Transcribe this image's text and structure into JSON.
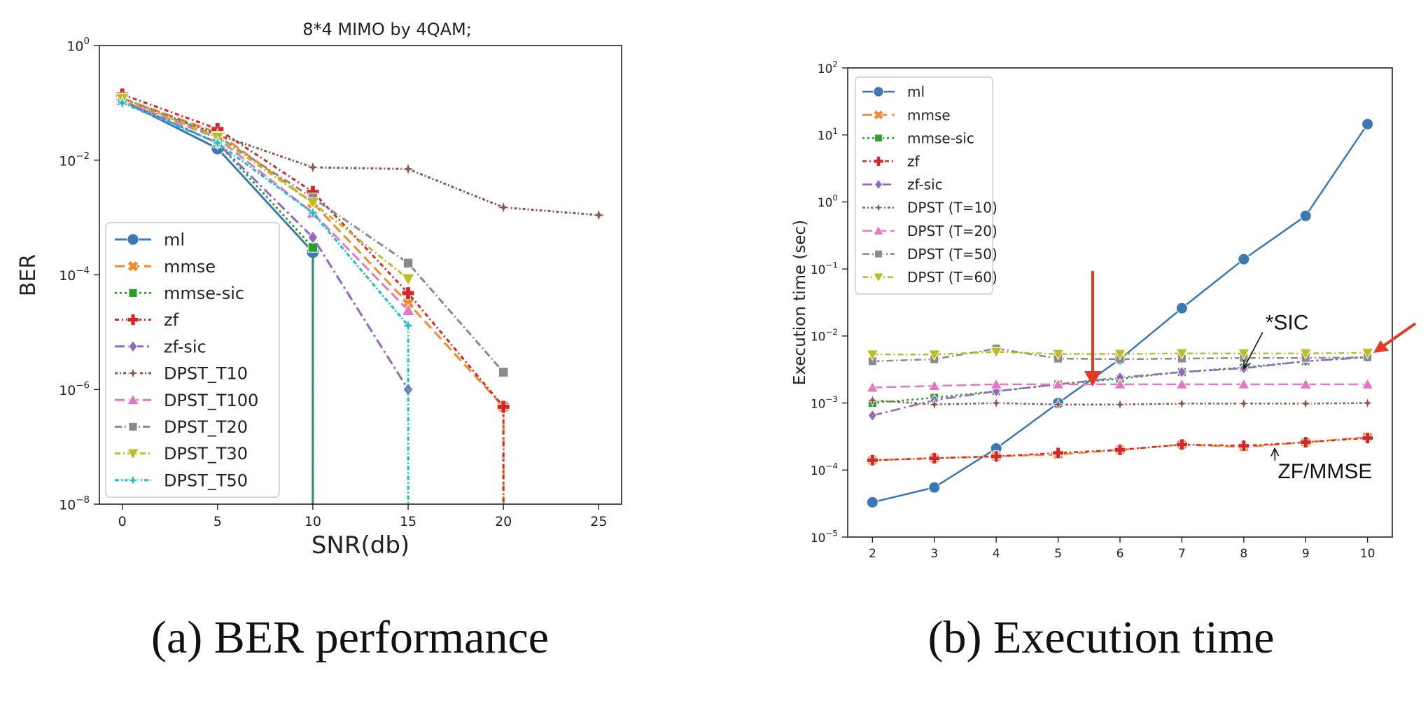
{
  "chart_data": [
    {
      "id": "a",
      "type": "line",
      "title": "8*4 MIMO by 4QAM;",
      "xlabel": "SNR(db)",
      "ylabel": "BER",
      "yscale": "log",
      "xlim": [
        -1.2,
        26.2
      ],
      "ylim": [
        1e-08,
        1
      ],
      "xticks": [
        0,
        5,
        10,
        15,
        20,
        25
      ],
      "xtick_labels": [
        "0",
        "5",
        "10",
        "15",
        "20",
        "25"
      ],
      "yticks": [
        1e-08,
        1e-06,
        0.0001,
        0.01,
        1
      ],
      "ytick_labels": [
        [
          "10",
          "−8"
        ],
        [
          "10",
          "−6"
        ],
        [
          "10",
          "−4"
        ],
        [
          "10",
          "−2"
        ],
        [
          "10",
          "0"
        ]
      ],
      "legend": "lower-left",
      "caption": "(a) BER performance",
      "series": [
        {
          "name": "ml",
          "color": "#3c78b4",
          "dash": "",
          "marker": "circle",
          "points": [
            [
              0,
              0.11
            ],
            [
              5,
              0.016
            ],
            [
              10,
              0.00025
            ],
            [
              10,
              1e-08
            ]
          ]
        },
        {
          "name": "mmse",
          "color": "#f5892a",
          "dash": "14 7",
          "marker": "x",
          "points": [
            [
              0,
              0.12
            ],
            [
              5,
              0.03
            ],
            [
              10,
              0.0018
            ],
            [
              15,
              3.2e-05
            ],
            [
              20,
              5e-07
            ],
            [
              20,
              1e-08
            ]
          ]
        },
        {
          "name": "mmse-sic",
          "color": "#2ca02c",
          "dash": "3 4",
          "marker": "square",
          "points": [
            [
              0,
              0.11
            ],
            [
              5,
              0.02
            ],
            [
              10,
              0.0003
            ],
            [
              10,
              1e-08
            ]
          ]
        },
        {
          "name": "zf",
          "color": "#d62728",
          "dash": "6 4 2 4",
          "marker": "plus",
          "points": [
            [
              0,
              0.14
            ],
            [
              5,
              0.035
            ],
            [
              10,
              0.0028
            ],
            [
              15,
              4.8e-05
            ],
            [
              20,
              5e-07
            ],
            [
              20,
              1e-08
            ]
          ]
        },
        {
          "name": "zf-sic",
          "color": "#9467bd",
          "dash": "14 5 3 5",
          "marker": "diamond",
          "points": [
            [
              0,
              0.11
            ],
            [
              5,
              0.02
            ],
            [
              10,
              0.00045
            ],
            [
              15,
              1e-06
            ]
          ]
        },
        {
          "name": "DPST_T10",
          "color": "#8c564b",
          "dash": "4 3 2 3",
          "marker": "star",
          "points": [
            [
              0,
              0.12
            ],
            [
              5,
              0.028
            ],
            [
              10,
              0.0075
            ],
            [
              15,
              0.007
            ],
            [
              20,
              0.0015
            ],
            [
              25,
              0.0011
            ]
          ]
        },
        {
          "name": "DPST_T100",
          "color": "#e377c2",
          "dash": "14 6",
          "marker": "triangle",
          "points": [
            [
              0,
              0.11
            ],
            [
              5,
              0.024
            ],
            [
              10,
              0.0012
            ],
            [
              15,
              2.4e-05
            ]
          ]
        },
        {
          "name": "DPST_T20",
          "color": "#8a8a8a",
          "dash": "10 4 2 4",
          "marker": "square",
          "points": [
            [
              0,
              0.12
            ],
            [
              5,
              0.026
            ],
            [
              10,
              0.0022
            ],
            [
              15,
              0.00016
            ],
            [
              20,
              2e-06
            ]
          ]
        },
        {
          "name": "DPST_T30",
          "color": "#bcbd22",
          "dash": "8 4 2 4",
          "marker": "triangle-down",
          "points": [
            [
              0,
              0.12
            ],
            [
              5,
              0.025
            ],
            [
              10,
              0.0018
            ],
            [
              15,
              8.5e-05
            ]
          ]
        },
        {
          "name": "DPST_T50",
          "color": "#17becf",
          "dash": "6 3 2 3",
          "marker": "star",
          "points": [
            [
              0,
              0.1
            ],
            [
              5,
              0.02
            ],
            [
              10,
              0.0012
            ],
            [
              15,
              1.3e-05
            ],
            [
              15,
              1e-08
            ]
          ]
        }
      ]
    },
    {
      "id": "b",
      "type": "line",
      "title": "",
      "xlabel": "",
      "ylabel": "Execution time (sec)",
      "yscale": "log",
      "xlim": [
        1.6,
        10.4
      ],
      "ylim": [
        1e-05,
        100
      ],
      "xticks": [
        2,
        3,
        4,
        5,
        6,
        7,
        8,
        9,
        10
      ],
      "xtick_labels": [
        "2",
        "3",
        "4",
        "5",
        "6",
        "7",
        "8",
        "9",
        "10"
      ],
      "yticks": [
        1e-05,
        0.0001,
        0.001,
        0.01,
        0.1,
        1,
        10,
        100
      ],
      "ytick_labels": [
        [
          "10",
          "−5"
        ],
        [
          "10",
          "−4"
        ],
        [
          "10",
          "−3"
        ],
        [
          "10",
          "−2"
        ],
        [
          "10",
          "−1"
        ],
        [
          "10",
          "0"
        ],
        [
          "10",
          "1"
        ],
        [
          "10",
          "2"
        ]
      ],
      "legend": "upper-left",
      "caption": "(b) Execution time",
      "annotations": [
        {
          "text": "*SIC",
          "x": 8.35,
          "y": 0.0125,
          "arrow_to": [
            8.0,
            0.0033
          ]
        },
        {
          "text": "ZF/MMSE",
          "x": 8.55,
          "y": 7.5e-05,
          "arrow_to": [
            8.5,
            0.00021
          ]
        }
      ],
      "series": [
        {
          "name": "ml",
          "color": "#3c78b4",
          "dash": "",
          "marker": "circle",
          "points": [
            [
              2,
              3.3e-05
            ],
            [
              3,
              5.5e-05
            ],
            [
              4,
              0.00021
            ],
            [
              5,
              0.001
            ],
            [
              6,
              0.0045
            ],
            [
              7,
              0.026
            ],
            [
              8,
              0.14
            ],
            [
              9,
              0.62
            ],
            [
              10,
              14.5
            ]
          ]
        },
        {
          "name": "mmse",
          "color": "#f5892a",
          "dash": "14 7",
          "marker": "x",
          "points": [
            [
              2,
              0.00014
            ],
            [
              3,
              0.00015
            ],
            [
              4,
              0.00016
            ],
            [
              5,
              0.00017
            ],
            [
              6,
              0.0002
            ],
            [
              7,
              0.00024
            ],
            [
              8,
              0.00022
            ],
            [
              9,
              0.00026
            ],
            [
              10,
              0.00031
            ]
          ]
        },
        {
          "name": "mmse-sic",
          "color": "#2ca02c",
          "dash": "3 4",
          "marker": "square",
          "points": [
            [
              2,
              0.001
            ],
            [
              3,
              0.0012
            ],
            [
              4,
              0.0015
            ],
            [
              5,
              0.0019
            ],
            [
              6,
              0.0023
            ],
            [
              7,
              0.0029
            ],
            [
              8,
              0.0034
            ],
            [
              9,
              0.0042
            ],
            [
              10,
              0.0049
            ]
          ]
        },
        {
          "name": "zf",
          "color": "#d62728",
          "dash": "6 4 2 4",
          "marker": "plus",
          "points": [
            [
              2,
              0.00014
            ],
            [
              3,
              0.00015
            ],
            [
              4,
              0.00016
            ],
            [
              5,
              0.00018
            ],
            [
              6,
              0.0002
            ],
            [
              7,
              0.00024
            ],
            [
              8,
              0.00023
            ],
            [
              9,
              0.00026
            ],
            [
              10,
              0.0003
            ]
          ]
        },
        {
          "name": "zf-sic",
          "color": "#9467bd",
          "dash": "14 5 3 5",
          "marker": "diamond",
          "points": [
            [
              2,
              0.00065
            ],
            [
              3,
              0.0011
            ],
            [
              4,
              0.0015
            ],
            [
              5,
              0.0019
            ],
            [
              6,
              0.0024
            ],
            [
              7,
              0.0029
            ],
            [
              8,
              0.0033
            ],
            [
              9,
              0.0042
            ],
            [
              10,
              0.0048
            ]
          ]
        },
        {
          "name": "DPST  (T=10)",
          "color": "#8c564b",
          "dash": "4 3 2 3",
          "marker": "star",
          "points": [
            [
              2,
              0.0011
            ],
            [
              3,
              0.00095
            ],
            [
              4,
              0.001
            ],
            [
              5,
              0.00095
            ],
            [
              6,
              0.00095
            ],
            [
              7,
              0.00098
            ],
            [
              8,
              0.00098
            ],
            [
              9,
              0.00098
            ],
            [
              10,
              0.001
            ]
          ]
        },
        {
          "name": "DPST  (T=20)",
          "color": "#e377c2",
          "dash": "14 6",
          "marker": "triangle",
          "points": [
            [
              2,
              0.0017
            ],
            [
              3,
              0.0018
            ],
            [
              4,
              0.0019
            ],
            [
              5,
              0.0019
            ],
            [
              6,
              0.0019
            ],
            [
              7,
              0.0019
            ],
            [
              8,
              0.0019
            ],
            [
              9,
              0.0019
            ],
            [
              10,
              0.0019
            ]
          ]
        },
        {
          "name": "DPST  (T=50)",
          "color": "#8a8a8a",
          "dash": "10 4 2 4",
          "marker": "square",
          "points": [
            [
              2,
              0.0042
            ],
            [
              3,
              0.0045
            ],
            [
              4,
              0.0065
            ],
            [
              5,
              0.0046
            ],
            [
              6,
              0.0045
            ],
            [
              7,
              0.0046
            ],
            [
              8,
              0.0047
            ],
            [
              9,
              0.0047
            ],
            [
              10,
              0.0048
            ]
          ]
        },
        {
          "name": "DPST  (T=60)",
          "color": "#bcbd22",
          "dash": "8 4 2 4",
          "marker": "triangle-down",
          "points": [
            [
              2,
              0.0053
            ],
            [
              3,
              0.0053
            ],
            [
              4,
              0.0058
            ],
            [
              5,
              0.0054
            ],
            [
              6,
              0.0054
            ],
            [
              7,
              0.0055
            ],
            [
              8,
              0.0055
            ],
            [
              9,
              0.0055
            ],
            [
              10,
              0.0056
            ]
          ]
        }
      ]
    }
  ]
}
